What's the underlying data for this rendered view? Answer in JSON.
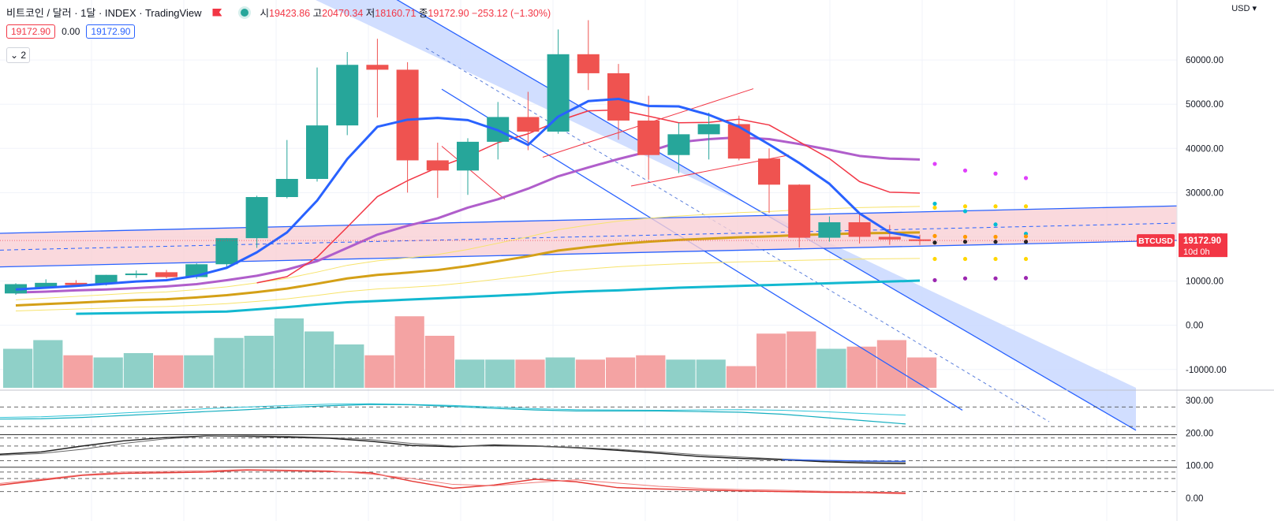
{
  "header": {
    "title": "비트코인 / 달러 · 1달 · INDEX · TradingView",
    "open_label": "시",
    "open_value": "19423.86",
    "high_label": "고",
    "high_value": "20470.34",
    "low_label": "저",
    "low_value": "18160.71",
    "close_label": "종",
    "close_value": "19172.90",
    "change": "−253.12 (−1.30%)"
  },
  "pills": {
    "bid": "19172.90",
    "spread": "0.00",
    "ask": "19172.90"
  },
  "indicator_toggle": "2",
  "price_scale": {
    "currency": "USD",
    "last_price": "19172.90",
    "countdown": "10d 0h",
    "symbol_tag": "BTCUSD"
  },
  "colors": {
    "up": "#26a69a",
    "down": "#ef5350",
    "vol_up": "#8fd0c8",
    "vol_down": "#f4a3a3",
    "ma_fast": "#2962ff",
    "ma_red": "#f23645",
    "ma_purple": "#b05ecb",
    "ma_gold": "#d4a017",
    "ma_cyan": "#12b8d0",
    "ma_yellow": "#f7e36b",
    "channel_fill": "#c9d8ff",
    "channel_line": "#2962ff",
    "band_fill": "#f9d0d4"
  },
  "chart_data": {
    "type": "candlestick",
    "y_axis_ticks": [
      60000,
      50000,
      40000,
      30000,
      20000,
      10000,
      0,
      -10000
    ],
    "y_axis_labels": [
      "60000.00",
      "50000.00",
      "40000.00",
      "30000.00",
      "20000.00",
      "10000.00",
      "0.00",
      "-10000.00"
    ],
    "ylim": [
      -12000,
      70000
    ],
    "candles": [
      {
        "o": 7200,
        "h": 9500,
        "l": 6900,
        "c": 9300
      },
      {
        "o": 8600,
        "h": 10400,
        "l": 8300,
        "c": 9600
      },
      {
        "o": 9600,
        "h": 10200,
        "l": 8900,
        "c": 9100
      },
      {
        "o": 9400,
        "h": 11400,
        "l": 9000,
        "c": 11400
      },
      {
        "o": 11400,
        "h": 12400,
        "l": 10700,
        "c": 11700
      },
      {
        "o": 12000,
        "h": 12500,
        "l": 10600,
        "c": 10900
      },
      {
        "o": 10900,
        "h": 14000,
        "l": 10500,
        "c": 13800
      },
      {
        "o": 13800,
        "h": 19700,
        "l": 13200,
        "c": 19700
      },
      {
        "o": 19700,
        "h": 29300,
        "l": 17500,
        "c": 29000
      },
      {
        "o": 29000,
        "h": 41900,
        "l": 28700,
        "c": 33100
      },
      {
        "o": 33100,
        "h": 58300,
        "l": 32500,
        "c": 45200
      },
      {
        "o": 45200,
        "h": 61800,
        "l": 43000,
        "c": 58900
      },
      {
        "o": 58900,
        "h": 64800,
        "l": 47000,
        "c": 57800
      },
      {
        "o": 57800,
        "h": 59500,
        "l": 30000,
        "c": 37300
      },
      {
        "o": 37300,
        "h": 41300,
        "l": 28800,
        "c": 35000
      },
      {
        "o": 35000,
        "h": 42300,
        "l": 29500,
        "c": 41500
      },
      {
        "o": 41500,
        "h": 50500,
        "l": 37500,
        "c": 47100
      },
      {
        "o": 47100,
        "h": 52800,
        "l": 39600,
        "c": 43800
      },
      {
        "o": 43800,
        "h": 66900,
        "l": 43300,
        "c": 61300
      },
      {
        "o": 61300,
        "h": 69000,
        "l": 53200,
        "c": 57000
      },
      {
        "o": 57000,
        "h": 59100,
        "l": 42000,
        "c": 46300
      },
      {
        "o": 46300,
        "h": 51900,
        "l": 32900,
        "c": 38500
      },
      {
        "o": 38500,
        "h": 45800,
        "l": 34400,
        "c": 43200
      },
      {
        "o": 43200,
        "h": 48100,
        "l": 37500,
        "c": 45500
      },
      {
        "o": 45500,
        "h": 47400,
        "l": 37300,
        "c": 37700
      },
      {
        "o": 37700,
        "h": 40000,
        "l": 25400,
        "c": 31800
      },
      {
        "o": 31800,
        "h": 31900,
        "l": 17600,
        "c": 19800
      },
      {
        "o": 19800,
        "h": 24600,
        "l": 18900,
        "c": 23300
      },
      {
        "o": 23300,
        "h": 25200,
        "l": 18500,
        "c": 20000
      },
      {
        "o": 20000,
        "h": 22700,
        "l": 18200,
        "c": 19400
      },
      {
        "o": 19424,
        "h": 20470,
        "l": 18161,
        "c": 19173
      }
    ],
    "ma_blue": [
      8100,
      8500,
      8900,
      9400,
      9900,
      10200,
      11200,
      13000,
      16500,
      21000,
      28200,
      37600,
      44900,
      46500,
      46900,
      46400,
      44100,
      40800,
      47200,
      50700,
      51200,
      49600,
      49500,
      47600,
      44900,
      40900,
      36700,
      32000,
      25300,
      21000,
      19800
    ],
    "ma_red": [
      null,
      null,
      null,
      null,
      null,
      null,
      null,
      null,
      9600,
      11000,
      15400,
      22200,
      29100,
      32700,
      35700,
      38200,
      41300,
      43300,
      46200,
      48500,
      48700,
      47300,
      45800,
      45900,
      46600,
      45300,
      41500,
      37700,
      32500,
      30100,
      29900
    ],
    "ma_purple": [
      7400,
      7600,
      7900,
      8100,
      8400,
      8800,
      9300,
      10200,
      11200,
      12600,
      14500,
      17500,
      20500,
      22500,
      24200,
      26600,
      28500,
      30900,
      33700,
      35700,
      37600,
      39300,
      41400,
      42100,
      42500,
      42100,
      41000,
      39700,
      38300,
      37700,
      37500
    ],
    "ma_gold": [
      4500,
      4800,
      5100,
      5400,
      5700,
      5900,
      6300,
      6800,
      7500,
      8300,
      9400,
      10600,
      11400,
      11900,
      12500,
      13400,
      14500,
      15600,
      16900,
      17700,
      18400,
      18900,
      19300,
      19600,
      19900,
      20100,
      20400,
      20600,
      20800,
      20900,
      21000
    ],
    "ma_cyan": [
      null,
      null,
      2600,
      2700,
      2800,
      2900,
      3000,
      3100,
      3600,
      4100,
      4700,
      5200,
      5500,
      5800,
      6100,
      6400,
      6700,
      7000,
      7400,
      7700,
      7900,
      8200,
      8500,
      8700,
      8900,
      9100,
      9300,
      9500,
      9700,
      9900,
      10100
    ],
    "volume": [
      18,
      22,
      15,
      14,
      16,
      15,
      15,
      23,
      24,
      32,
      26,
      20,
      15,
      33,
      24,
      13,
      13,
      13,
      14,
      13,
      14,
      15,
      13,
      13,
      10,
      25,
      26,
      18,
      19,
      22,
      14
    ],
    "forecast_dots": [
      {
        "color": "#e040fb",
        "values": [
          36500,
          35000,
          34300,
          33300
        ]
      },
      {
        "color": "#00bcd4",
        "values": [
          27500,
          25800,
          22800,
          20700
        ]
      },
      {
        "color": "#ffd600",
        "values": [
          26600,
          26900,
          26900,
          26900
        ]
      },
      {
        "color": "#ff9800",
        "values": [
          20200,
          20000,
          20000,
          20100
        ]
      },
      {
        "color": "#212121",
        "values": [
          18700,
          18900,
          18900,
          18900
        ]
      },
      {
        "color": "#ffd600",
        "values": [
          15000,
          15000,
          15000,
          15000
        ]
      },
      {
        "color": "#9c27b0",
        "values": [
          10200,
          10600,
          10600,
          10700
        ]
      }
    ],
    "sub_axis_labels": [
      "300.00",
      "200.00",
      "100.00",
      "0.00"
    ],
    "sub_axis_ticks": [
      300,
      200,
      100,
      0
    ],
    "sub_ylim": [
      -10,
      315
    ],
    "sub_dashed_levels": [
      280,
      220,
      185,
      160,
      115,
      80,
      60,
      20
    ],
    "sub_solid_levels": [
      195,
      95
    ],
    "osc_cyan_a": [
      248,
      250,
      255,
      262,
      268,
      275,
      280,
      285,
      289,
      290,
      288,
      285,
      280,
      275,
      272,
      271,
      270,
      271,
      272,
      270,
      266,
      260,
      255
    ],
    "osc_cyan_b": [
      243,
      244,
      248,
      254,
      260,
      266,
      272,
      279,
      284,
      288,
      287,
      282,
      276,
      271,
      268,
      268,
      268,
      266,
      264,
      258,
      248,
      238,
      228
    ],
    "osc_black_a": [
      135,
      142,
      160,
      176,
      186,
      191,
      190,
      187,
      184,
      175,
      162,
      158,
      163,
      160,
      155,
      147,
      138,
      128,
      122,
      118,
      112,
      108,
      106
    ],
    "osc_black_b": [
      132,
      137,
      150,
      168,
      182,
      190,
      192,
      190,
      186,
      180,
      168,
      160,
      160,
      159,
      156,
      150,
      142,
      133,
      126,
      120,
      115,
      112,
      111
    ],
    "osc_red_a": [
      40,
      55,
      70,
      76,
      78,
      80,
      86,
      84,
      82,
      78,
      52,
      30,
      40,
      58,
      50,
      32,
      28,
      25,
      22,
      20,
      18,
      17,
      14
    ],
    "osc_red_b": [
      45,
      58,
      72,
      80,
      82,
      84,
      88,
      86,
      84,
      74,
      60,
      42,
      38,
      48,
      56,
      46,
      36,
      30,
      26,
      24,
      21,
      19,
      17
    ],
    "osc_blue_a": [
      null,
      null,
      null,
      null,
      null,
      null,
      null,
      null,
      null,
      null,
      null,
      null,
      null,
      null,
      null,
      null,
      null,
      null,
      null,
      118,
      116,
      114,
      113
    ]
  }
}
